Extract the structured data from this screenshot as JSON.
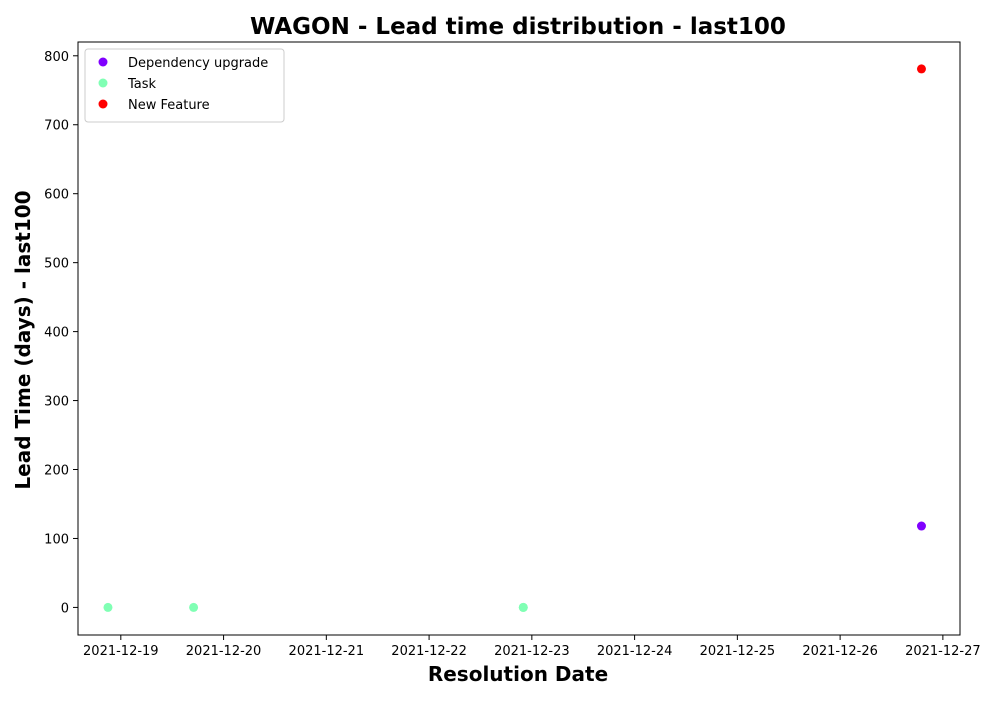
{
  "chart_data": {
    "type": "scatter",
    "title": "WAGON - Lead time distribution - last100",
    "xlabel": "Resolution Date",
    "ylabel": "Lead Time (days) - last100",
    "xlim": [
      "2021-12-18T14:00",
      "2021-12-27T04:00"
    ],
    "ylim": [
      -40,
      820
    ],
    "x_ticks": [
      "2021-12-19",
      "2021-12-20",
      "2021-12-21",
      "2021-12-22",
      "2021-12-23",
      "2021-12-24",
      "2021-12-25",
      "2021-12-26",
      "2021-12-27"
    ],
    "y_ticks": [
      0,
      100,
      200,
      300,
      400,
      500,
      600,
      700,
      800
    ],
    "grid": false,
    "legend_position": "top-left",
    "series": [
      {
        "name": "Dependency upgrade",
        "color": "#8000ff",
        "points": [
          {
            "x": "2021-12-26T19:00",
            "y": 118
          }
        ]
      },
      {
        "name": "Task",
        "color": "#80ffb4",
        "points": [
          {
            "x": "2021-12-18T21:00",
            "y": 0
          },
          {
            "x": "2021-12-19T17:00",
            "y": 0
          },
          {
            "x": "2021-12-22T22:00",
            "y": 0
          },
          {
            "x": "2021-12-22T22:00",
            "y": 0
          }
        ]
      },
      {
        "name": "New Feature",
        "color": "#ff0000",
        "points": [
          {
            "x": "2021-12-26T19:00",
            "y": 781
          }
        ]
      }
    ]
  }
}
